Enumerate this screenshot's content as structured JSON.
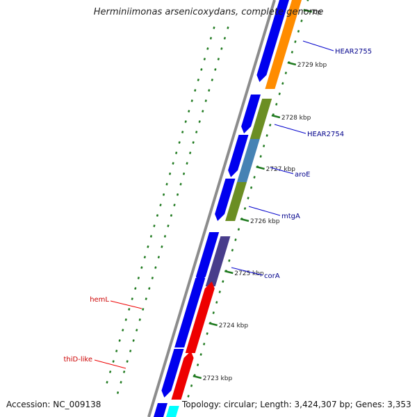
{
  "title": "Herminiimonas arsenicoxydans, complete genome",
  "footer": {
    "accession": "Accession: NC_009138",
    "summary": "Topology: circular; Length: 3,424,307 bp; Genes: 3,353"
  },
  "ticks": [
    {
      "id": "2730",
      "label": "bp"
    },
    {
      "id": "2729",
      "label": "2729 kbp"
    },
    {
      "id": "2728",
      "label": "2728 kbp"
    },
    {
      "id": "2727",
      "label": "2727 kbp"
    },
    {
      "id": "2726",
      "label": "2726 kbp"
    },
    {
      "id": "2725",
      "label": "2725 kbp"
    },
    {
      "id": "2724",
      "label": "2724 kbp"
    },
    {
      "id": "2723",
      "label": "2723 kbp"
    }
  ],
  "genes": [
    {
      "id": "hear2755",
      "label": "HEAR2755",
      "color": "#00008b"
    },
    {
      "id": "hear2754",
      "label": "HEAR2754",
      "color": "#00008b"
    },
    {
      "id": "aroe",
      "label": "aroE",
      "color": "#00008b"
    },
    {
      "id": "mtga",
      "label": "mtgA",
      "color": "#00008b"
    },
    {
      "id": "cora",
      "label": "corA",
      "color": "#00008b"
    },
    {
      "id": "heml",
      "label": "hemL",
      "color": "#cc0000"
    },
    {
      "id": "thid-like",
      "label": "thiD-like",
      "color": "#cc0000"
    }
  ],
  "colors": {
    "backbone": "#8c8c8c",
    "cds": "#0000ee",
    "tick": "#1f7a1f",
    "orange": "#ff8c00",
    "olive": "#6b8e23",
    "steelblue": "#4682b4",
    "slate": "#483d8b",
    "red": "#ee0000",
    "cyan": "#00ffff"
  }
}
